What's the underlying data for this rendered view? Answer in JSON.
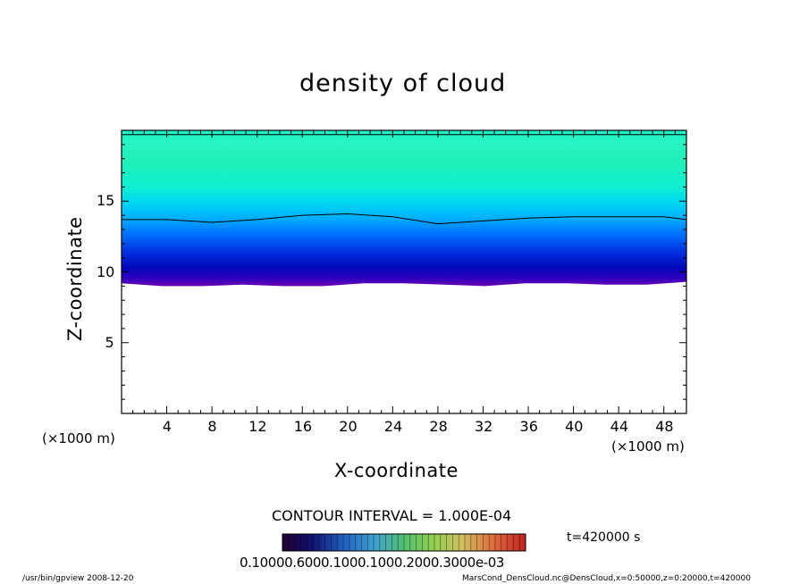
{
  "chart_data": {
    "type": "heatmap",
    "title": "density of cloud",
    "xlabel": "X-coordinate",
    "ylabel": "Z-coordinate",
    "x_unit": "(×1000 m)",
    "y_unit": "(×1000 m)",
    "xlim": [
      0,
      50
    ],
    "ylim": [
      0,
      20
    ],
    "xticks": [
      "4",
      "8",
      "12",
      "16",
      "20",
      "24",
      "28",
      "32",
      "36",
      "40",
      "44",
      "48"
    ],
    "yticks": [
      "5",
      "10",
      "15"
    ],
    "grid": false,
    "variable": "DensCloud",
    "contour_interval": "CONTOUR INTERVAL = 1.000E-04",
    "time_label": "t=420000 s",
    "colorbar_labels": "0.10000.6000.1000.1000.2000.3000e-03",
    "cloud_base_z": [
      9.2,
      9.0,
      9.0,
      9.1,
      9.0,
      9.0,
      9.2,
      9.2,
      9.1,
      9.0,
      9.2,
      9.2,
      9.1,
      9.1,
      9.3
    ],
    "contour_z": [
      13.7,
      13.7,
      13.5,
      13.7,
      14.0,
      14.1,
      14.0,
      13.9,
      13.4,
      13.6,
      13.8,
      13.9,
      13.9,
      13.9,
      13.7
    ],
    "contour_x": [
      0,
      4,
      8,
      12,
      16,
      20,
      22,
      24,
      28,
      32,
      36,
      40,
      44,
      48,
      50
    ]
  },
  "footer": {
    "left": "/usr/bin/gpview   2008-12-20",
    "right": "MarsCond_DensCloud.nc@DensCloud,x=0:50000,z=0:20000,t=420000"
  },
  "colors": {
    "band_low": "#6a00b0",
    "band_mid": "#0010c0",
    "band_high": "#20f0c0"
  }
}
